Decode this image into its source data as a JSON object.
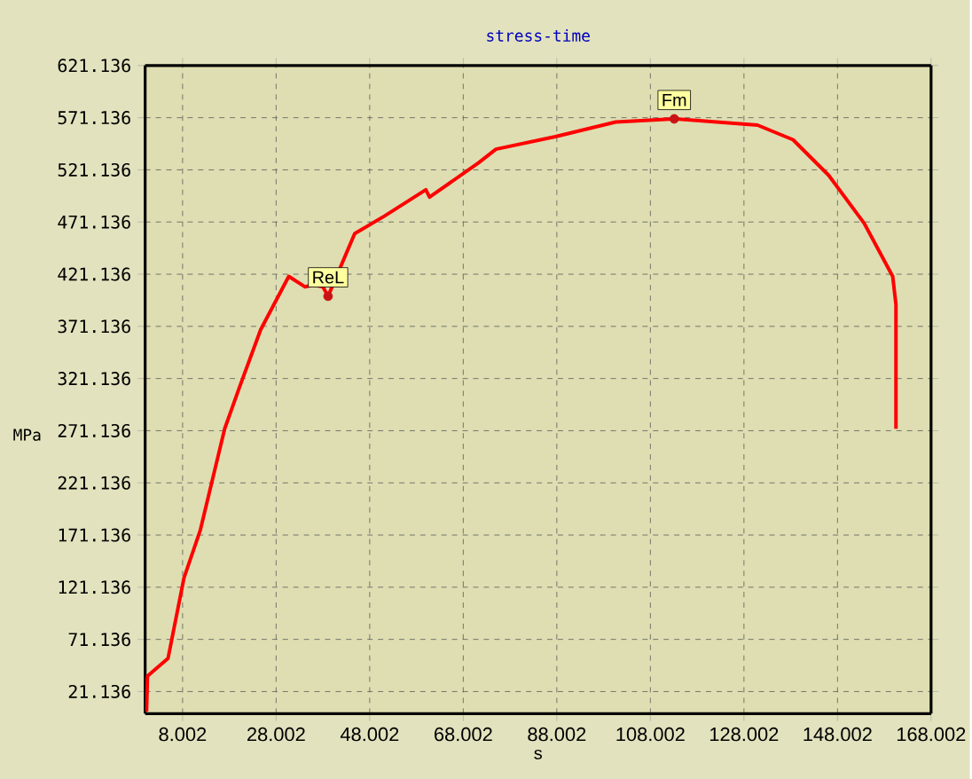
{
  "chart_data": {
    "type": "line",
    "title": "stress-time",
    "xlabel": "s",
    "ylabel": "MPa",
    "xlim": [
      0,
      168.002
    ],
    "ylim": [
      0,
      621.136
    ],
    "xticks": [
      8.002,
      28.002,
      48.002,
      68.002,
      88.002,
      108.002,
      128.002,
      148.002,
      168.002
    ],
    "yticks": [
      21.136,
      71.136,
      121.136,
      171.136,
      221.136,
      271.136,
      321.136,
      371.136,
      421.136,
      471.136,
      521.136,
      571.136,
      621.136
    ],
    "grid": true,
    "marker": "none",
    "line_style": "solid",
    "series": [
      {
        "color": "#ff0000",
        "x": [
          0.3,
          0.5,
          4.9,
          8.3,
          11.8,
          17,
          20.1,
          24.7,
          30.7,
          34.2,
          36,
          38,
          39.1,
          44.8,
          51.2,
          60,
          60.8,
          71.3,
          75,
          87.7,
          100.6,
          113.1,
          130.9,
          138.5,
          146.1,
          153.7,
          159.8,
          160.5,
          160.5
        ],
        "values": [
          2,
          36,
          53,
          130,
          176,
          273,
          312,
          368,
          419,
          409,
          411,
          409,
          400,
          460,
          477,
          502,
          495,
          528,
          541,
          553,
          567,
          570,
          564,
          550,
          516,
          470,
          419,
          392,
          273
        ]
      }
    ],
    "annotations": [
      {
        "text": "ReL",
        "x": 39.1,
        "y": 400
      },
      {
        "text": "Fm",
        "x": 113.1,
        "y": 570
      }
    ]
  }
}
